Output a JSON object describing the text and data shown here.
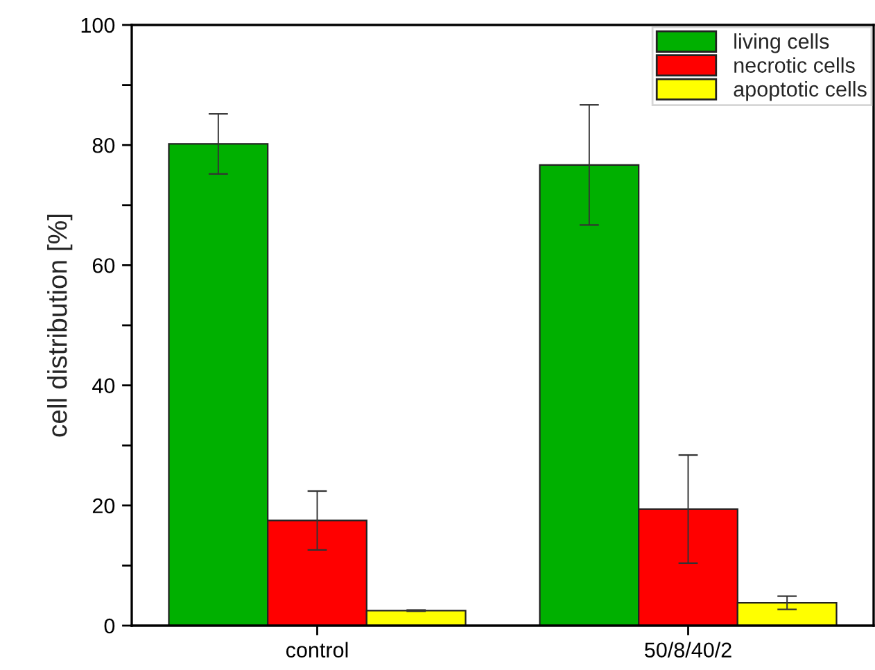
{
  "chart_data": {
    "type": "bar",
    "ylabel": "cell distribution [%]",
    "categories": [
      "control",
      "50/8/40/2"
    ],
    "series": [
      {
        "name": "living cells",
        "color": "#00b000",
        "values": [
          80.2,
          76.7
        ],
        "errors": [
          5,
          10
        ]
      },
      {
        "name": "necrotic cells",
        "color": "#ff0000",
        "values": [
          17.5,
          19.4
        ],
        "errors": [
          4.9,
          9
        ]
      },
      {
        "name": "apoptotic cells",
        "color": "#ffff00",
        "values": [
          2.5,
          3.8
        ],
        "errors": [
          0.1,
          1.1
        ]
      }
    ],
    "ylim": [
      0,
      100
    ],
    "yticks": [
      0,
      {
        "value": 10,
        "label": null
      },
      20,
      {
        "value": 30,
        "label": null
      },
      40,
      {
        "value": 50,
        "label": null
      },
      60,
      {
        "value": 70,
        "label": null
      },
      80,
      {
        "value": 90,
        "label": null
      },
      100
    ],
    "grid": false,
    "legend": "top right"
  }
}
